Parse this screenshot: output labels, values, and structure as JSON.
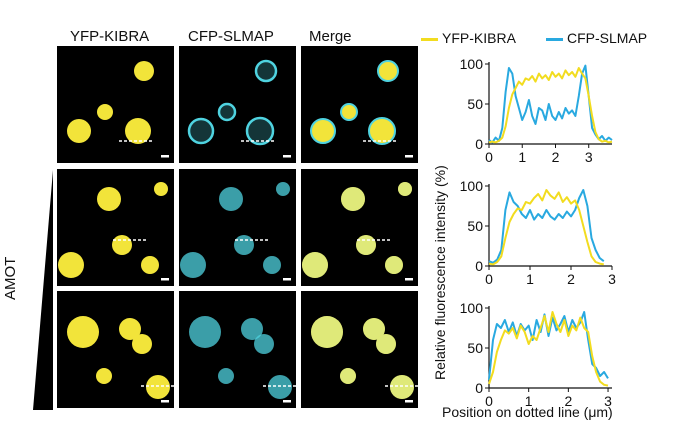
{
  "columns": [
    "YFP-KIBRA",
    "CFP-SLMAP",
    "Merge"
  ],
  "row_label": "AMOT",
  "colors": {
    "yfp": "#f2e43a",
    "cfp": "#4fd3e0",
    "yfp_line": "#f2dc1f",
    "cfp_line": "#29a9e0"
  },
  "legend": [
    "YFP-KIBRA",
    "CFP-SLMAP"
  ],
  "chart_data": [
    {
      "type": "line",
      "xlabel": "Position on dotted line (μm)",
      "ylabel": "Relative fluorescence intensity (%)",
      "xlim": [
        0,
        3.7
      ],
      "ylim": [
        0,
        100
      ],
      "xticks": [
        "0",
        "1",
        "2",
        "3"
      ],
      "yticks": [
        "0",
        "50",
        "100"
      ],
      "series": [
        {
          "name": "YFP-KIBRA",
          "x": [
            0,
            0.1,
            0.2,
            0.3,
            0.4,
            0.5,
            0.6,
            0.7,
            0.8,
            0.9,
            1.0,
            1.1,
            1.2,
            1.3,
            1.4,
            1.5,
            1.6,
            1.7,
            1.8,
            1.9,
            2.0,
            2.1,
            2.2,
            2.3,
            2.4,
            2.5,
            2.6,
            2.7,
            2.8,
            2.9,
            3.0,
            3.1,
            3.2,
            3.3,
            3.4,
            3.5,
            3.6,
            3.7
          ],
          "y": [
            2,
            3,
            2,
            4,
            8,
            22,
            45,
            62,
            70,
            78,
            74,
            82,
            80,
            85,
            78,
            88,
            82,
            86,
            80,
            90,
            84,
            88,
            82,
            92,
            86,
            90,
            84,
            95,
            88,
            82,
            60,
            35,
            15,
            6,
            3,
            4,
            2,
            3
          ]
        },
        {
          "name": "CFP-SLMAP",
          "x": [
            0,
            0.1,
            0.2,
            0.3,
            0.4,
            0.5,
            0.6,
            0.7,
            0.8,
            0.9,
            1.0,
            1.1,
            1.2,
            1.3,
            1.4,
            1.5,
            1.6,
            1.7,
            1.8,
            1.9,
            2.0,
            2.1,
            2.2,
            2.3,
            2.4,
            2.5,
            2.6,
            2.7,
            2.8,
            2.9,
            3.0,
            3.1,
            3.2,
            3.3,
            3.4,
            3.5,
            3.6,
            3.7
          ],
          "y": [
            5,
            2,
            8,
            4,
            20,
            65,
            95,
            88,
            60,
            45,
            30,
            40,
            55,
            35,
            25,
            45,
            42,
            30,
            50,
            35,
            30,
            40,
            32,
            45,
            38,
            42,
            35,
            60,
            88,
            98,
            60,
            20,
            12,
            6,
            10,
            4,
            8,
            5
          ]
        }
      ]
    },
    {
      "type": "line",
      "xlim": [
        0,
        3
      ],
      "ylim": [
        0,
        100
      ],
      "xticks": [
        "0",
        "1",
        "2",
        "3"
      ],
      "yticks": [
        "0",
        "50",
        "100"
      ],
      "series": [
        {
          "name": "YFP-KIBRA",
          "x": [
            0,
            0.1,
            0.2,
            0.3,
            0.4,
            0.5,
            0.6,
            0.7,
            0.8,
            0.9,
            1.0,
            1.1,
            1.2,
            1.3,
            1.4,
            1.5,
            1.6,
            1.7,
            1.8,
            1.9,
            2.0,
            2.1,
            2.2,
            2.3,
            2.4,
            2.5,
            2.6,
            2.7,
            2.8
          ],
          "y": [
            3,
            2,
            5,
            12,
            35,
            55,
            65,
            72,
            70,
            80,
            78,
            85,
            90,
            82,
            95,
            88,
            84,
            92,
            80,
            86,
            78,
            82,
            70,
            50,
            30,
            12,
            5,
            3,
            2
          ]
        },
        {
          "name": "CFP-SLMAP",
          "x": [
            0,
            0.1,
            0.2,
            0.3,
            0.4,
            0.5,
            0.6,
            0.7,
            0.8,
            0.9,
            1.0,
            1.1,
            1.2,
            1.3,
            1.4,
            1.5,
            1.6,
            1.7,
            1.8,
            1.9,
            2.0,
            2.1,
            2.2,
            2.3,
            2.4,
            2.5,
            2.6,
            2.7,
            2.8
          ],
          "y": [
            6,
            4,
            8,
            20,
            70,
            92,
            80,
            75,
            65,
            60,
            70,
            58,
            65,
            60,
            70,
            62,
            58,
            65,
            60,
            68,
            62,
            70,
            85,
            95,
            75,
            35,
            20,
            10,
            6
          ]
        }
      ]
    },
    {
      "type": "line",
      "xlim": [
        0,
        3.1
      ],
      "ylim": [
        0,
        100
      ],
      "xticks": [
        "0",
        "1",
        "2",
        "3"
      ],
      "yticks": [
        "0",
        "50",
        "100"
      ],
      "series": [
        {
          "name": "YFP-KIBRA",
          "x": [
            0,
            0.1,
            0.2,
            0.3,
            0.4,
            0.5,
            0.6,
            0.7,
            0.8,
            0.9,
            1.0,
            1.1,
            1.2,
            1.3,
            1.4,
            1.5,
            1.6,
            1.7,
            1.8,
            1.9,
            2.0,
            2.1,
            2.2,
            2.3,
            2.4,
            2.5,
            2.6,
            2.7,
            2.8,
            2.9,
            3.0
          ],
          "y": [
            5,
            20,
            45,
            60,
            72,
            68,
            75,
            62,
            78,
            70,
            55,
            65,
            60,
            75,
            90,
            70,
            95,
            80,
            70,
            85,
            65,
            78,
            72,
            88,
            75,
            70,
            40,
            20,
            8,
            4,
            3
          ]
        },
        {
          "name": "CFP-SLMAP",
          "x": [
            0,
            0.1,
            0.2,
            0.3,
            0.4,
            0.5,
            0.6,
            0.7,
            0.8,
            0.9,
            1.0,
            1.1,
            1.2,
            1.3,
            1.4,
            1.5,
            1.6,
            1.7,
            1.8,
            1.9,
            2.0,
            2.1,
            2.2,
            2.3,
            2.4,
            2.5,
            2.6,
            2.7,
            2.8,
            2.9,
            3.0
          ],
          "y": [
            10,
            60,
            80,
            75,
            85,
            70,
            82,
            65,
            80,
            72,
            78,
            60,
            85,
            70,
            92,
            65,
            88,
            72,
            80,
            90,
            70,
            85,
            75,
            82,
            95,
            60,
            30,
            25,
            15,
            20,
            12
          ]
        }
      ]
    }
  ]
}
